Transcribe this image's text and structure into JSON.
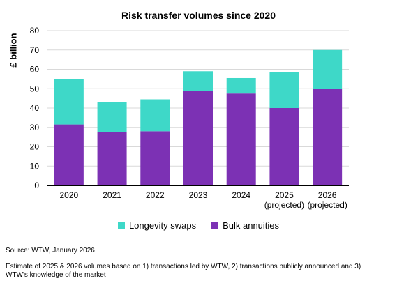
{
  "chart_data": {
    "type": "bar",
    "stacked": true,
    "title": "Risk transfer volumes since 2020",
    "ylabel": "£ billion",
    "xlabel": "",
    "ylim": [
      0,
      80
    ],
    "yticks": [
      0,
      10,
      20,
      30,
      40,
      50,
      60,
      70,
      80
    ],
    "grid": true,
    "legend_position": "bottom",
    "categories": [
      [
        "2020"
      ],
      [
        "2021"
      ],
      [
        "2022"
      ],
      [
        "2023"
      ],
      [
        "2024"
      ],
      [
        "2025",
        "(projected)"
      ],
      [
        "2026",
        "(projected)"
      ]
    ],
    "series": [
      {
        "name": "Bulk annuities",
        "color": "#7c31b4",
        "values": [
          31.5,
          27.5,
          28,
          49,
          47.5,
          40,
          50
        ]
      },
      {
        "name": "Longevity swaps",
        "color": "#3ed8c8",
        "values": [
          23.5,
          15.5,
          16.5,
          10,
          8,
          18.5,
          20
        ]
      }
    ],
    "legend_order": [
      "Longevity swaps",
      "Bulk annuities"
    ]
  },
  "footer": {
    "source": "Source: WTW, January 2026",
    "note": "Estimate of 2025 & 2026 volumes based on 1) transactions led by WTW, 2) transactions publicly announced and 3) WTW's knowledge of the market"
  }
}
